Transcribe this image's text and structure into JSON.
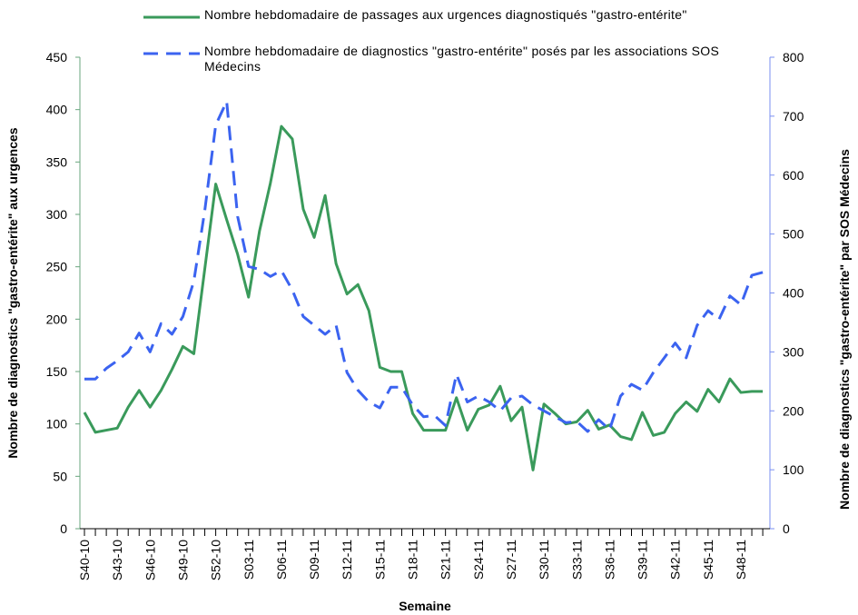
{
  "chart_data": {
    "type": "line",
    "x_label": "Semaine",
    "y_label": "Nombre de diagnostics \"gastro-entérite\" aux urgences",
    "y2_label": "Nombre de diagnostics \"gastro-entérite\" par SOS Médecins",
    "categories": [
      "S40-10",
      null,
      null,
      "S43-10",
      null,
      null,
      "S46-10",
      null,
      null,
      "S49-10",
      null,
      null,
      "S52-10",
      null,
      null,
      "S03-11",
      null,
      null,
      "S06-11",
      null,
      null,
      "S09-11",
      null,
      null,
      "S12-11",
      null,
      null,
      "S15-11",
      null,
      null,
      "S18-11",
      null,
      null,
      "S21-11",
      null,
      null,
      "S24-11",
      null,
      null,
      "S27-11",
      null,
      null,
      "S30-11",
      null,
      null,
      "S33-11",
      null,
      null,
      "S36-11",
      null,
      null,
      "S39-11",
      null,
      null,
      "S42-11",
      null,
      null,
      "S45-11",
      null,
      null,
      "S48-11",
      null,
      null
    ],
    "series": [
      {
        "name": "Nombre hebdomadaire de passages aux urgences diagnostiqués \"gastro-entérite\"",
        "color": "#3a9a5b",
        "dash": false,
        "values": [
          111,
          92,
          94,
          96,
          116,
          132,
          116,
          132,
          152,
          174,
          167,
          248,
          329,
          295,
          262,
          221,
          284,
          330,
          384,
          372,
          305,
          278,
          318,
          253,
          224,
          233,
          208,
          154,
          150,
          150,
          110,
          94,
          94,
          94,
          125,
          94,
          114,
          118,
          136,
          103,
          116,
          56,
          119,
          110,
          100,
          102,
          113,
          95,
          99,
          88,
          85,
          111,
          89,
          92,
          110,
          121,
          112,
          133,
          121,
          143,
          130,
          131,
          131
        ]
      },
      {
        "name": "Nombre hebdomadaire de diagnostics \"gastro-entérite\" posés par les associations SOS Médecins",
        "color": "#3b63f0",
        "dash": true,
        "axis": "y2",
        "values": [
          254,
          254,
          272,
          285,
          300,
          332,
          300,
          348,
          330,
          360,
          420,
          540,
          685,
          725,
          530,
          445,
          440,
          428,
          438,
          405,
          360,
          345,
          330,
          345,
          265,
          235,
          215,
          205,
          240,
          240,
          210,
          190,
          192,
          175,
          262,
          215,
          225,
          215,
          200,
          222,
          225,
          210,
          200,
          190,
          180,
          182,
          165,
          185,
          168,
          225,
          245,
          235,
          265,
          290,
          315,
          290,
          345,
          370,
          355,
          395,
          380,
          430,
          435
        ]
      }
    ],
    "ylim": [
      0,
      450
    ],
    "yticks": [
      0,
      50,
      100,
      150,
      200,
      250,
      300,
      350,
      400,
      450
    ],
    "y2lim": [
      0,
      800
    ],
    "y2ticks": [
      0,
      100,
      200,
      300,
      400,
      500,
      600,
      700,
      800
    ],
    "grid": false,
    "legend": "top"
  }
}
